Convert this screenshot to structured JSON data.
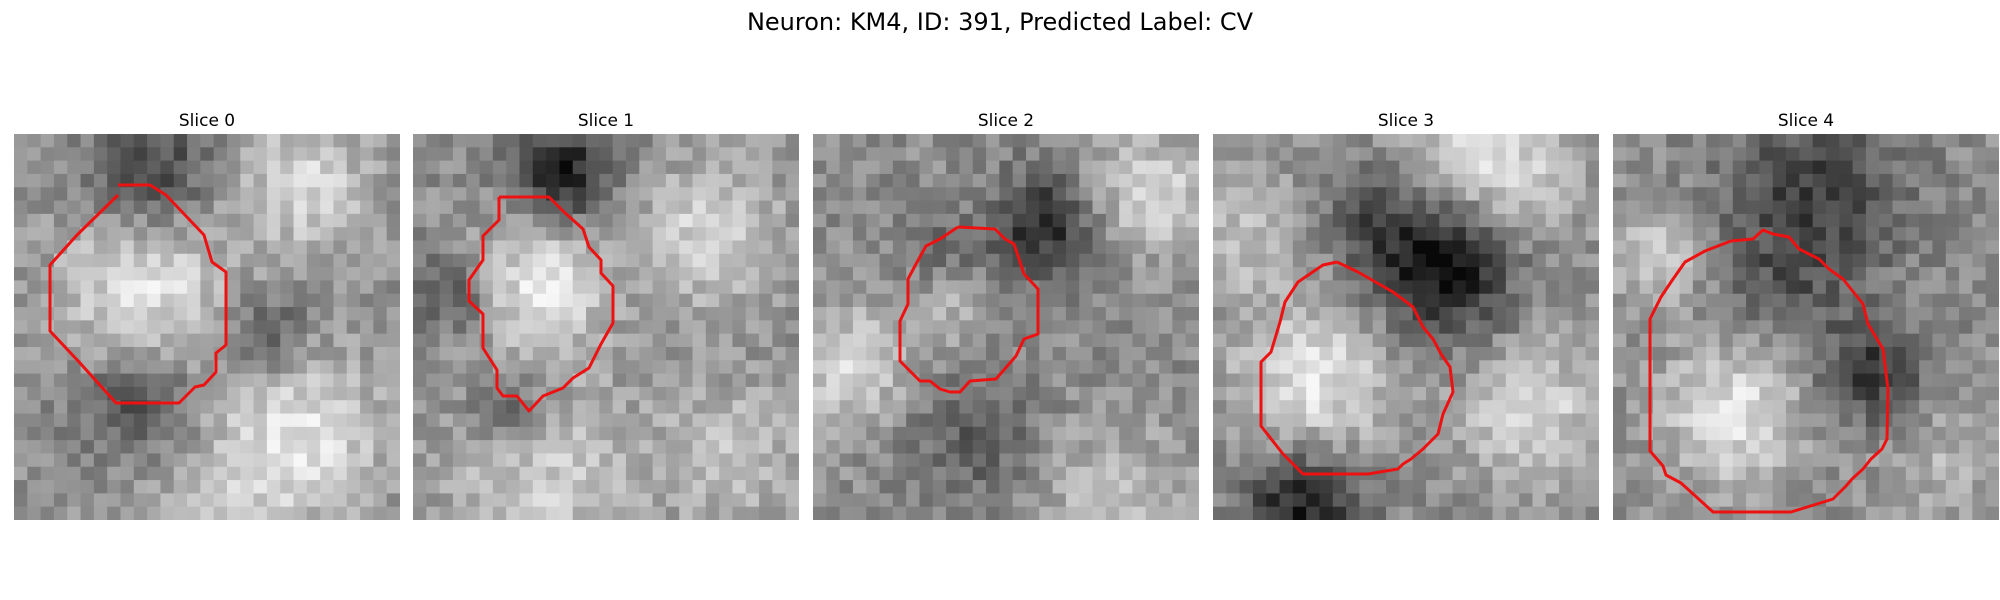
{
  "figure": {
    "title": "Neuron: KM4, ID: 391, Predicted Label: CV"
  },
  "panels": [
    {
      "title": "Slice 0"
    },
    {
      "title": "Slice 1"
    },
    {
      "title": "Slice 2"
    },
    {
      "title": "Slice 3"
    },
    {
      "title": "Slice 4"
    }
  ],
  "colors": {
    "outline": "#ee1111",
    "background": "#ffffff"
  }
}
